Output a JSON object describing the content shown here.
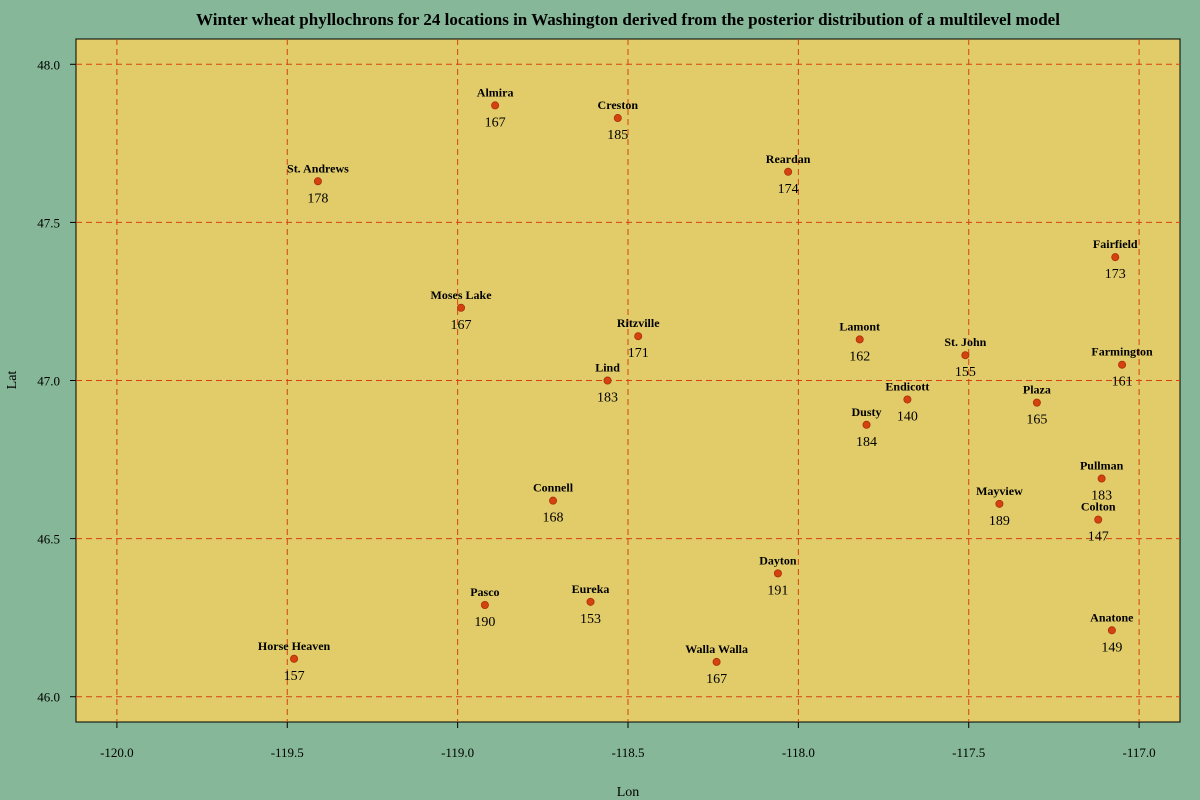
{
  "colors": {
    "background": "#85b798",
    "plot_area": "#e2cc6a",
    "grid": "#d4420f",
    "point": "#d4420f"
  },
  "chart_data": {
    "type": "scatter",
    "title": "Winter wheat phyllochrons for 24 locations in Washington derived from the posterior distribution of a multilevel model",
    "xlabel": "Lon",
    "ylabel": "Lat",
    "xlim": [
      -120.12,
      -116.88
    ],
    "ylim": [
      45.92,
      48.08
    ],
    "xticks": [
      -120.0,
      -119.5,
      -119.0,
      -118.5,
      -118.0,
      -117.5,
      -117.0
    ],
    "yticks": [
      46.0,
      46.5,
      47.0,
      47.5,
      48.0
    ],
    "xtick_labels": [
      "-120.0",
      "-119.5",
      "-119.0",
      "-118.5",
      "-118.0",
      "-117.5",
      "-117.0"
    ],
    "ytick_labels": [
      "46.0",
      "46.5",
      "47.0",
      "47.5",
      "48.0"
    ],
    "grid": true,
    "points": [
      {
        "name": "Almira",
        "lon": -118.89,
        "lat": 47.87,
        "value": "167"
      },
      {
        "name": "Creston",
        "lon": -118.53,
        "lat": 47.83,
        "value": "185"
      },
      {
        "name": "Reardan",
        "lon": -118.03,
        "lat": 47.66,
        "value": "174"
      },
      {
        "name": "St. Andrews",
        "lon": -119.41,
        "lat": 47.63,
        "value": "178"
      },
      {
        "name": "Fairfield",
        "lon": -117.07,
        "lat": 47.39,
        "value": "173"
      },
      {
        "name": "Moses Lake",
        "lon": -118.99,
        "lat": 47.23,
        "value": "167"
      },
      {
        "name": "Ritzville",
        "lon": -118.47,
        "lat": 47.14,
        "value": "171"
      },
      {
        "name": "Lamont",
        "lon": -117.82,
        "lat": 47.13,
        "value": "162"
      },
      {
        "name": "St. John",
        "lon": -117.51,
        "lat": 47.08,
        "value": "155"
      },
      {
        "name": "Farmington",
        "lon": -117.05,
        "lat": 47.05,
        "value": "161"
      },
      {
        "name": "Lind",
        "lon": -118.56,
        "lat": 47.0,
        "value": "183"
      },
      {
        "name": "Endicott",
        "lon": -117.68,
        "lat": 46.94,
        "value": "140"
      },
      {
        "name": "Plaza",
        "lon": -117.3,
        "lat": 46.93,
        "value": "165"
      },
      {
        "name": "Dusty",
        "lon": -117.8,
        "lat": 46.86,
        "value": "184"
      },
      {
        "name": "Pullman",
        "lon": -117.11,
        "lat": 46.69,
        "value": "183"
      },
      {
        "name": "Connell",
        "lon": -118.72,
        "lat": 46.62,
        "value": "168"
      },
      {
        "name": "Mayview",
        "lon": -117.41,
        "lat": 46.61,
        "value": "189"
      },
      {
        "name": "Colton",
        "lon": -117.12,
        "lat": 46.56,
        "value": "147"
      },
      {
        "name": "Dayton",
        "lon": -118.06,
        "lat": 46.39,
        "value": "191"
      },
      {
        "name": "Eureka",
        "lon": -118.61,
        "lat": 46.3,
        "value": "153"
      },
      {
        "name": "Pasco",
        "lon": -118.92,
        "lat": 46.29,
        "value": "190"
      },
      {
        "name": "Anatone",
        "lon": -117.08,
        "lat": 46.21,
        "value": "149"
      },
      {
        "name": "Horse Heaven",
        "lon": -119.48,
        "lat": 46.12,
        "value": "157"
      },
      {
        "name": "Walla Walla",
        "lon": -118.24,
        "lat": 46.11,
        "value": "167"
      }
    ]
  }
}
